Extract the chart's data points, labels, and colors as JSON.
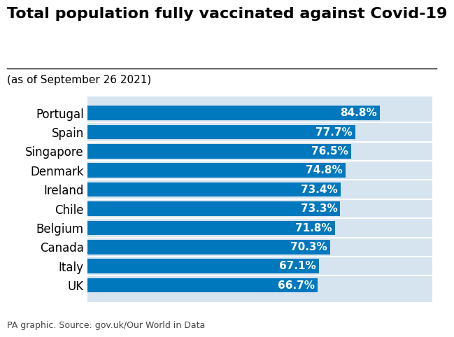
{
  "title": "Total population fully vaccinated against Covid-19",
  "subtitle": "(as of September 26 2021)",
  "footer": "PA graphic. Source: gov.uk/Our World in Data",
  "categories": [
    "Portugal",
    "Spain",
    "Singapore",
    "Denmark",
    "Ireland",
    "Chile",
    "Belgium",
    "Canada",
    "Italy",
    "UK"
  ],
  "values": [
    84.8,
    77.7,
    76.5,
    74.8,
    73.4,
    73.3,
    71.8,
    70.3,
    67.1,
    66.7
  ],
  "labels": [
    "84.8%",
    "77.7%",
    "76.5%",
    "74.8%",
    "73.4%",
    "73.3%",
    "71.8%",
    "70.3%",
    "67.1%",
    "66.7%"
  ],
  "bar_color": "#0078BE",
  "bg_color": "#D6E4F0",
  "fig_bg_color": "#FFFFFF",
  "title_fontsize": 16,
  "subtitle_fontsize": 11,
  "label_fontsize": 11,
  "tick_fontsize": 12,
  "footer_fontsize": 9,
  "xlim": [
    0,
    100
  ]
}
